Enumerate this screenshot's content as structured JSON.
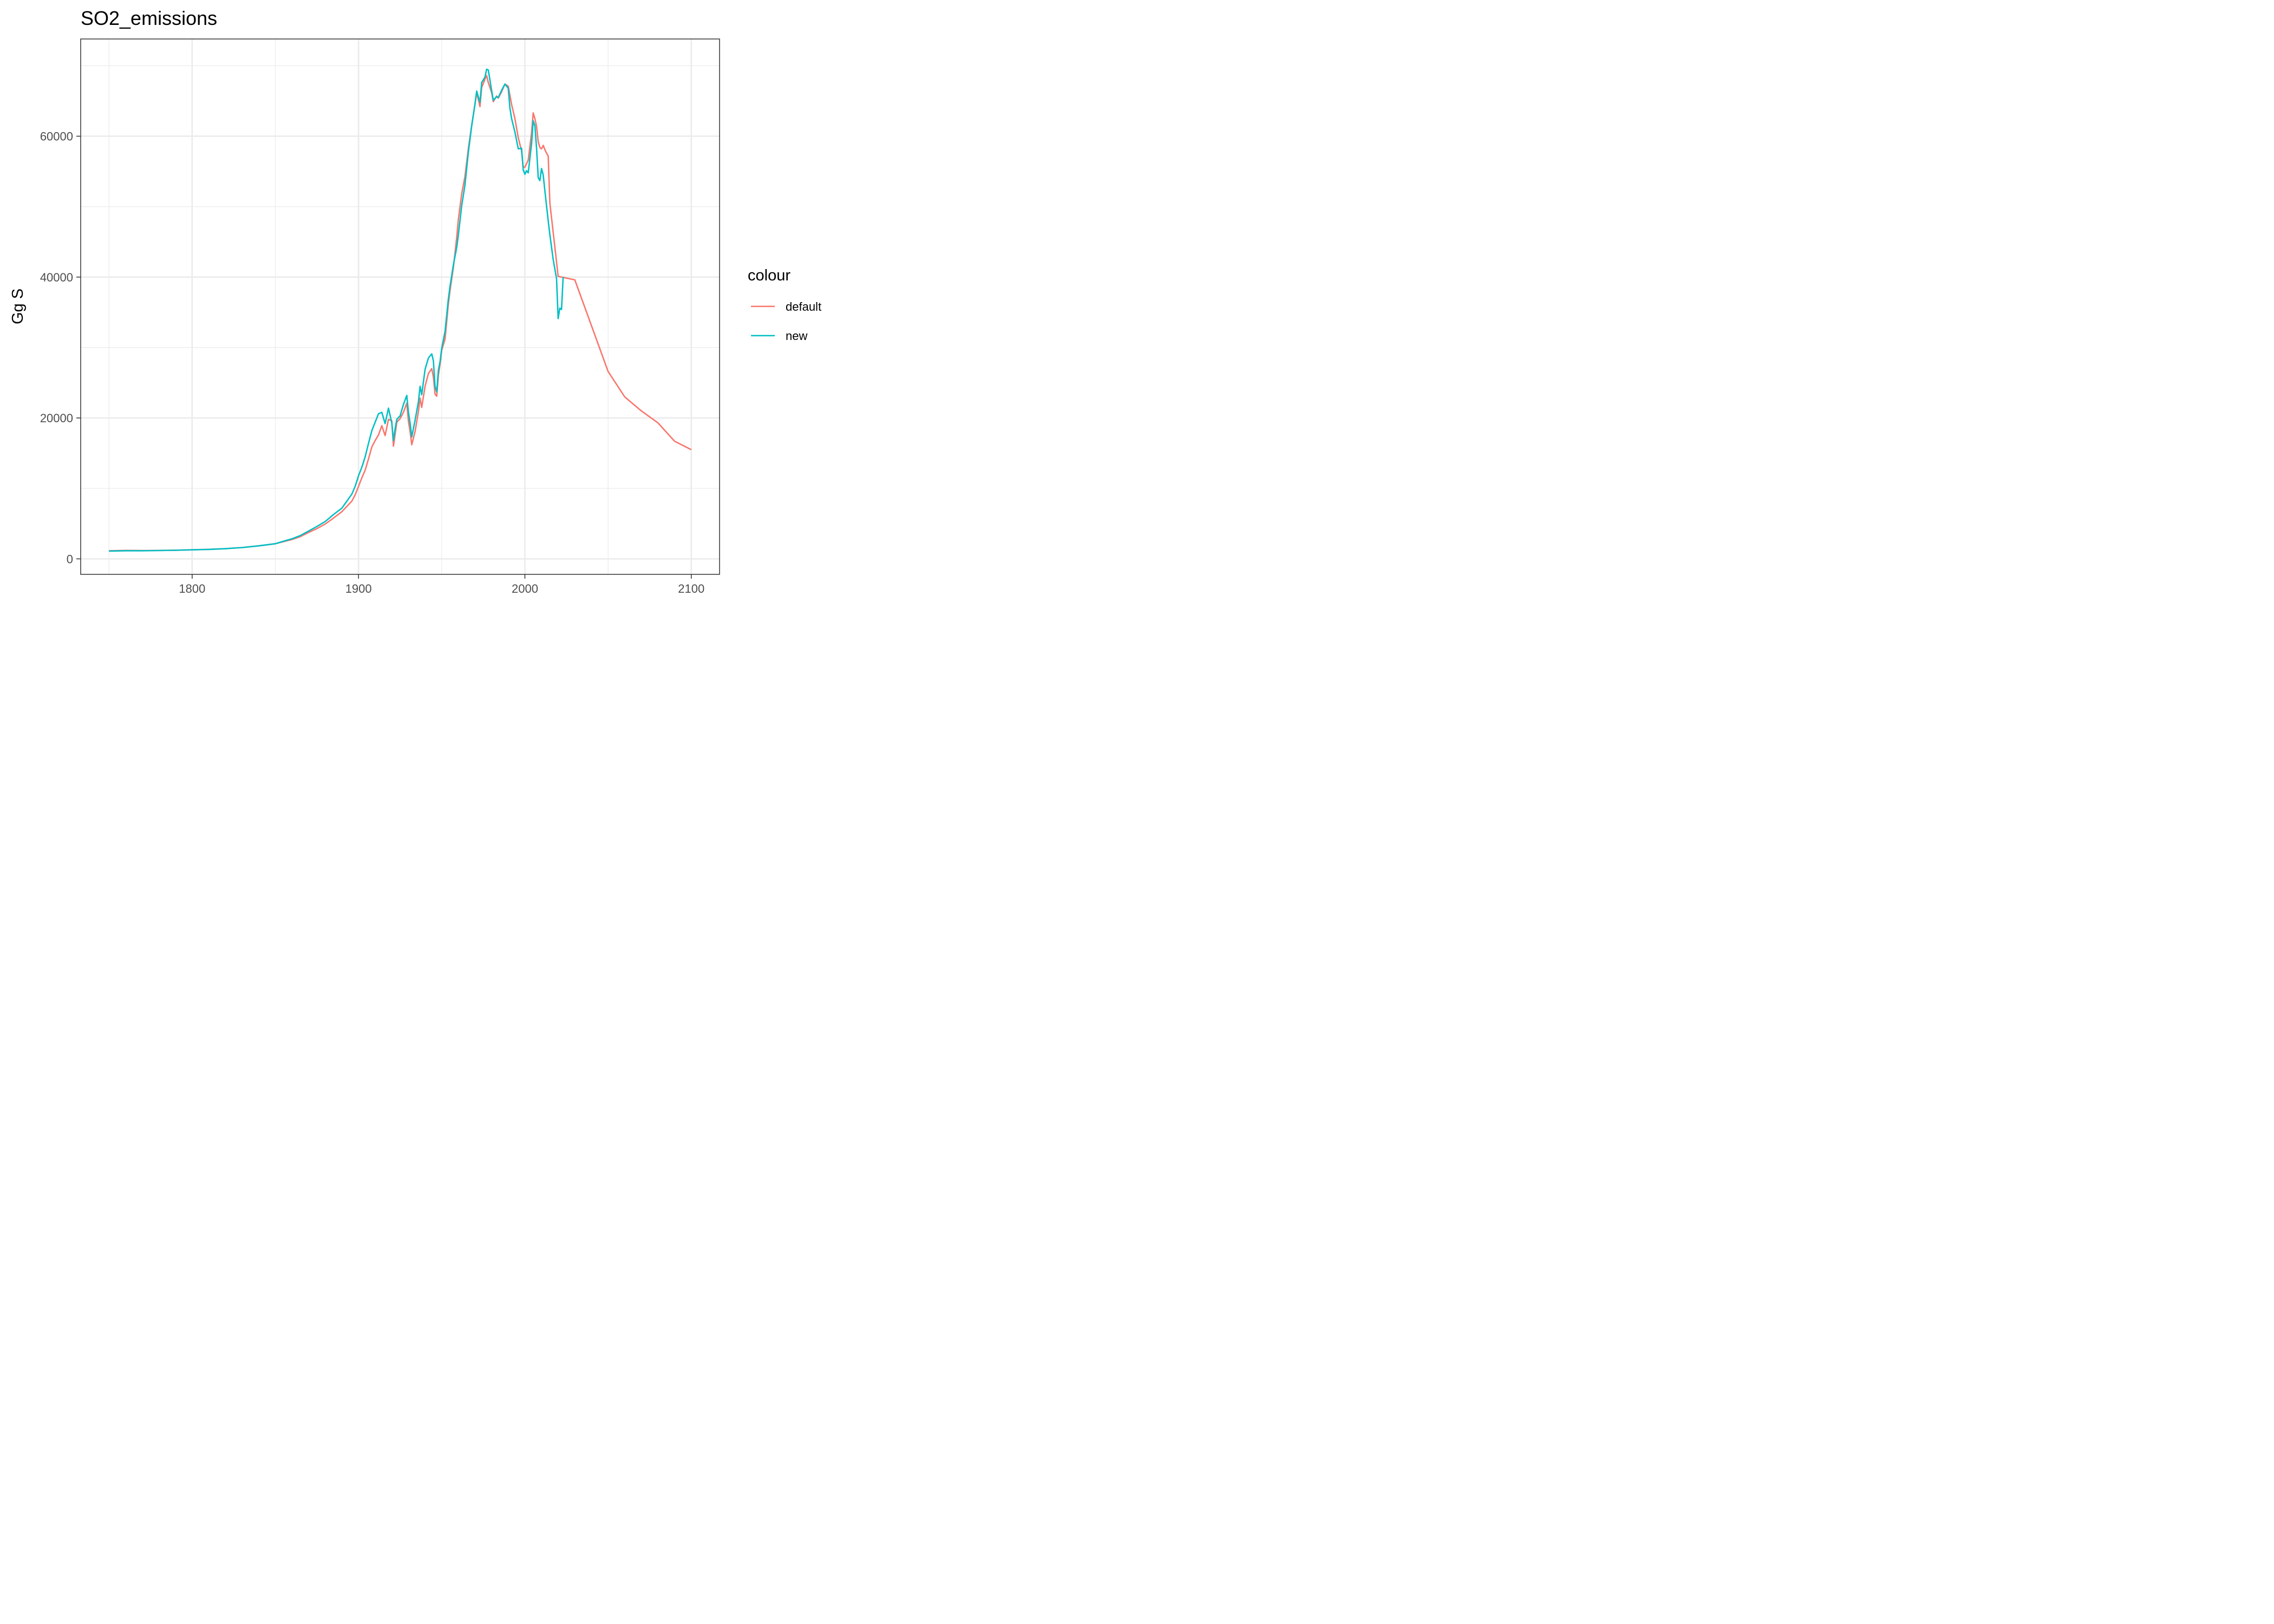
{
  "chart_data": {
    "type": "line",
    "title": "SO2_emissions",
    "xlabel": "",
    "ylabel": "Gg S",
    "xlim": [
      1733,
      2117
    ],
    "ylim": [
      -2200,
      73800
    ],
    "x_ticks": [
      1800,
      1900,
      2000,
      2100
    ],
    "x_tick_labels": [
      "1800",
      "1900",
      "2000",
      "2100"
    ],
    "x_minor_ticks": [
      1750,
      1850,
      1950,
      2050
    ],
    "y_ticks": [
      0,
      20000,
      40000,
      60000
    ],
    "y_tick_labels": [
      "0",
      "20000",
      "40000",
      "60000"
    ],
    "y_minor_ticks": [
      10000,
      30000,
      50000,
      70000
    ],
    "grid": true,
    "legend": {
      "title": "colour",
      "position": "right"
    },
    "series": [
      {
        "name": "default",
        "color": "#F8766D",
        "points": [
          [
            1750,
            1150
          ],
          [
            1760,
            1200
          ],
          [
            1770,
            1180
          ],
          [
            1780,
            1200
          ],
          [
            1790,
            1230
          ],
          [
            1800,
            1290
          ],
          [
            1810,
            1350
          ],
          [
            1820,
            1450
          ],
          [
            1830,
            1600
          ],
          [
            1840,
            1850
          ],
          [
            1850,
            2150
          ],
          [
            1855,
            2450
          ],
          [
            1860,
            2750
          ],
          [
            1865,
            3150
          ],
          [
            1870,
            3750
          ],
          [
            1875,
            4300
          ],
          [
            1880,
            4950
          ],
          [
            1885,
            5800
          ],
          [
            1890,
            6700
          ],
          [
            1893,
            7450
          ],
          [
            1896,
            8200
          ],
          [
            1898,
            9100
          ],
          [
            1900,
            10300
          ],
          [
            1902,
            11500
          ],
          [
            1904,
            12600
          ],
          [
            1906,
            14200
          ],
          [
            1908,
            15900
          ],
          [
            1910,
            16800
          ],
          [
            1912,
            17600
          ],
          [
            1914,
            18900
          ],
          [
            1916,
            17500
          ],
          [
            1918,
            19800
          ],
          [
            1920,
            19600
          ],
          [
            1921,
            16000
          ],
          [
            1922,
            17700
          ],
          [
            1923,
            19400
          ],
          [
            1925,
            19900
          ],
          [
            1927,
            20800
          ],
          [
            1929,
            22100
          ],
          [
            1930,
            19500
          ],
          [
            1931,
            18100
          ],
          [
            1932,
            16200
          ],
          [
            1934,
            18100
          ],
          [
            1936,
            20900
          ],
          [
            1937,
            22800
          ],
          [
            1938,
            21500
          ],
          [
            1940,
            24500
          ],
          [
            1942,
            26300
          ],
          [
            1944,
            27000
          ],
          [
            1945,
            25800
          ],
          [
            1946,
            23400
          ],
          [
            1947,
            23100
          ],
          [
            1948,
            26100
          ],
          [
            1949,
            27600
          ],
          [
            1950,
            29600
          ],
          [
            1952,
            31200
          ],
          [
            1954,
            36200
          ],
          [
            1955,
            38100
          ],
          [
            1957,
            41300
          ],
          [
            1959,
            45600
          ],
          [
            1960,
            48200
          ],
          [
            1962,
            51800
          ],
          [
            1964,
            54300
          ],
          [
            1966,
            58200
          ],
          [
            1968,
            61500
          ],
          [
            1970,
            64500
          ],
          [
            1971,
            66200
          ],
          [
            1973,
            64200
          ],
          [
            1974,
            66900
          ],
          [
            1976,
            68100
          ],
          [
            1977,
            68600
          ],
          [
            1978,
            67600
          ],
          [
            1980,
            66200
          ],
          [
            1981,
            64900
          ],
          [
            1983,
            65700
          ],
          [
            1984,
            65400
          ],
          [
            1986,
            66300
          ],
          [
            1988,
            67400
          ],
          [
            1990,
            67100
          ],
          [
            1991,
            65800
          ],
          [
            1992,
            64500
          ],
          [
            1994,
            62500
          ],
          [
            1996,
            59800
          ],
          [
            1998,
            57900
          ],
          [
            1999,
            55600
          ],
          [
            2000,
            55600
          ],
          [
            2001,
            56100
          ],
          [
            2002,
            56600
          ],
          [
            2004,
            60500
          ],
          [
            2005,
            63300
          ],
          [
            2006,
            62500
          ],
          [
            2007,
            61400
          ],
          [
            2008,
            59200
          ],
          [
            2009,
            58400
          ],
          [
            2010,
            58200
          ],
          [
            2011,
            58700
          ],
          [
            2012,
            58100
          ],
          [
            2013,
            57600
          ],
          [
            2014,
            57200
          ],
          [
            2015,
            50500
          ],
          [
            2020,
            40100
          ],
          [
            2030,
            39600
          ],
          [
            2040,
            33100
          ],
          [
            2050,
            26600
          ],
          [
            2060,
            23000
          ],
          [
            2070,
            21000
          ],
          [
            2080,
            19300
          ],
          [
            2090,
            16700
          ],
          [
            2100,
            15500
          ]
        ]
      },
      {
        "name": "new",
        "color": "#00BFC4",
        "points": [
          [
            1750,
            1100
          ],
          [
            1760,
            1150
          ],
          [
            1770,
            1150
          ],
          [
            1780,
            1180
          ],
          [
            1790,
            1220
          ],
          [
            1800,
            1280
          ],
          [
            1810,
            1340
          ],
          [
            1820,
            1440
          ],
          [
            1830,
            1600
          ],
          [
            1840,
            1850
          ],
          [
            1850,
            2150
          ],
          [
            1855,
            2500
          ],
          [
            1860,
            2850
          ],
          [
            1865,
            3300
          ],
          [
            1870,
            3950
          ],
          [
            1875,
            4600
          ],
          [
            1880,
            5300
          ],
          [
            1885,
            6300
          ],
          [
            1890,
            7200
          ],
          [
            1893,
            8200
          ],
          [
            1896,
            9200
          ],
          [
            1898,
            10300
          ],
          [
            1900,
            11800
          ],
          [
            1902,
            13000
          ],
          [
            1904,
            14500
          ],
          [
            1906,
            16400
          ],
          [
            1908,
            18200
          ],
          [
            1910,
            19400
          ],
          [
            1912,
            20600
          ],
          [
            1914,
            20800
          ],
          [
            1916,
            19200
          ],
          [
            1918,
            21400
          ],
          [
            1920,
            19300
          ],
          [
            1921,
            16800
          ],
          [
            1922,
            18500
          ],
          [
            1923,
            19800
          ],
          [
            1925,
            20300
          ],
          [
            1927,
            21900
          ],
          [
            1929,
            23200
          ],
          [
            1930,
            20800
          ],
          [
            1931,
            19300
          ],
          [
            1932,
            17300
          ],
          [
            1934,
            19700
          ],
          [
            1936,
            22300
          ],
          [
            1937,
            24500
          ],
          [
            1938,
            23300
          ],
          [
            1940,
            26900
          ],
          [
            1942,
            28500
          ],
          [
            1944,
            29100
          ],
          [
            1945,
            28100
          ],
          [
            1946,
            24500
          ],
          [
            1947,
            23700
          ],
          [
            1948,
            26800
          ],
          [
            1949,
            28000
          ],
          [
            1950,
            29900
          ],
          [
            1952,
            32300
          ],
          [
            1954,
            36900
          ],
          [
            1955,
            38700
          ],
          [
            1957,
            41700
          ],
          [
            1959,
            44200
          ],
          [
            1960,
            46000
          ],
          [
            1962,
            50100
          ],
          [
            1964,
            53100
          ],
          [
            1966,
            57700
          ],
          [
            1968,
            61400
          ],
          [
            1970,
            64600
          ],
          [
            1971,
            66400
          ],
          [
            1973,
            64800
          ],
          [
            1974,
            67600
          ],
          [
            1976,
            68400
          ],
          [
            1977,
            69500
          ],
          [
            1978,
            69400
          ],
          [
            1980,
            66500
          ],
          [
            1981,
            65100
          ],
          [
            1983,
            65600
          ],
          [
            1984,
            65500
          ],
          [
            1986,
            66500
          ],
          [
            1988,
            67400
          ],
          [
            1990,
            66800
          ],
          [
            1991,
            64000
          ],
          [
            1992,
            62500
          ],
          [
            1994,
            60600
          ],
          [
            1996,
            58200
          ],
          [
            1998,
            58300
          ],
          [
            1999,
            55200
          ],
          [
            2000,
            54600
          ],
          [
            2001,
            55100
          ],
          [
            2002,
            54800
          ],
          [
            2004,
            58900
          ],
          [
            2005,
            62200
          ],
          [
            2006,
            61500
          ],
          [
            2007,
            58300
          ],
          [
            2008,
            54100
          ],
          [
            2009,
            53700
          ],
          [
            2010,
            55400
          ],
          [
            2011,
            54500
          ],
          [
            2012,
            52300
          ],
          [
            2014,
            48000
          ],
          [
            2015,
            46000
          ],
          [
            2017,
            42500
          ],
          [
            2019,
            39800
          ],
          [
            2020,
            34100
          ],
          [
            2021,
            35600
          ],
          [
            2022,
            35400
          ],
          [
            2023,
            40000
          ]
        ]
      }
    ]
  }
}
